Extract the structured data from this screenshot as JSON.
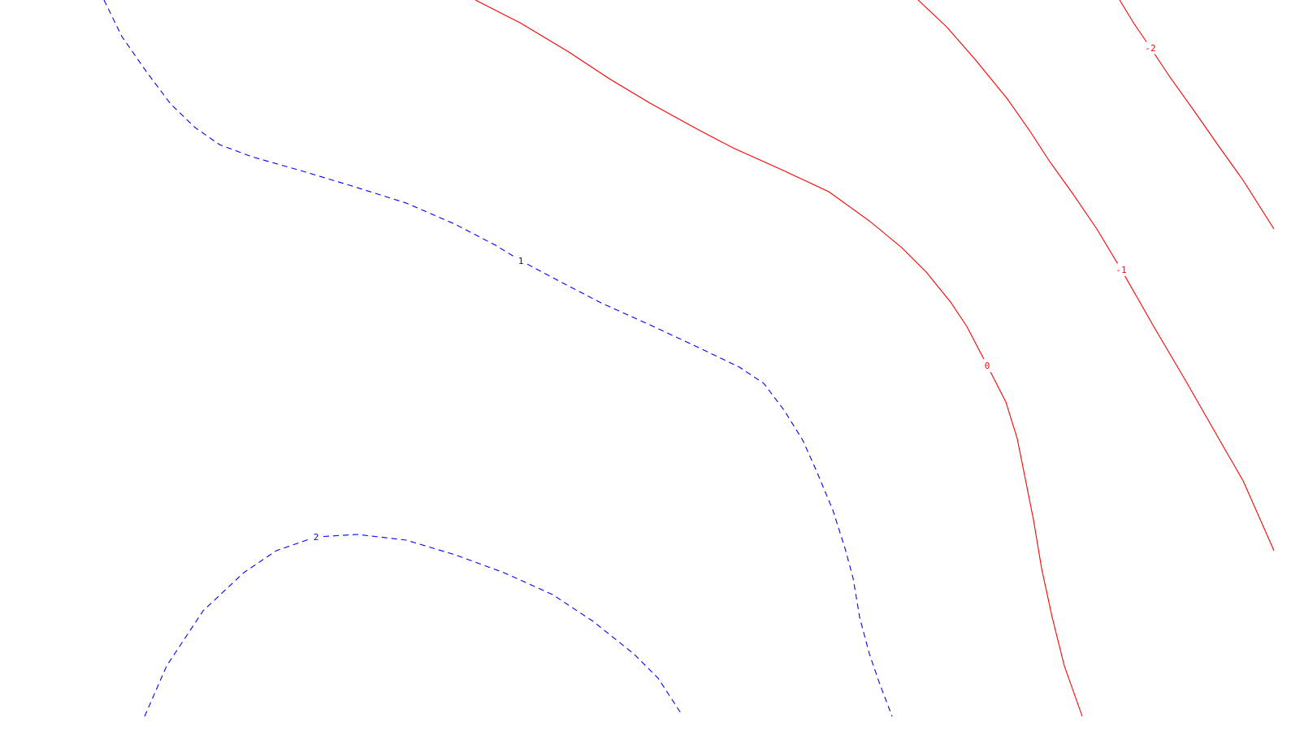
{
  "chart_data": {
    "type": "contour",
    "title": "",
    "xlabel": "",
    "ylabel": "",
    "grid": false,
    "legend": "none",
    "colors": {
      "positive": "#0000ff",
      "zero": "#ff0000",
      "negative": "#ff0000",
      "background": "#ffffff"
    },
    "line_styles": {
      "positive": "dashed",
      "zero": "solid",
      "negative": "solid"
    },
    "levels": [
      {
        "value": 2,
        "label": "2",
        "points": [
          [
            178,
            882
          ],
          [
            205,
            820
          ],
          [
            250,
            752
          ],
          [
            300,
            705
          ],
          [
            340,
            678
          ],
          [
            389,
            661
          ],
          [
            440,
            658
          ],
          [
            500,
            665
          ],
          [
            560,
            683
          ],
          [
            620,
            705
          ],
          [
            680,
            732
          ],
          [
            730,
            765
          ],
          [
            780,
            805
          ],
          [
            810,
            835
          ],
          [
            838,
            878
          ]
        ]
      },
      {
        "value": 1,
        "label": "1",
        "points": [
          [
            128,
            0
          ],
          [
            150,
            45
          ],
          [
            180,
            88
          ],
          [
            210,
            128
          ],
          [
            240,
            157
          ],
          [
            270,
            178
          ],
          [
            310,
            193
          ],
          [
            370,
            210
          ],
          [
            430,
            228
          ],
          [
            500,
            250
          ],
          [
            560,
            276
          ],
          [
            610,
            302
          ],
          [
            641,
            321
          ],
          [
            690,
            347
          ],
          [
            740,
            373
          ],
          [
            800,
            400
          ],
          [
            860,
            428
          ],
          [
            910,
            452
          ],
          [
            940,
            472
          ],
          [
            965,
            505
          ],
          [
            988,
            542
          ],
          [
            1005,
            580
          ],
          [
            1025,
            628
          ],
          [
            1040,
            675
          ],
          [
            1050,
            712
          ],
          [
            1058,
            760
          ],
          [
            1070,
            805
          ],
          [
            1082,
            840
          ],
          [
            1098,
            882
          ]
        ]
      },
      {
        "value": 0,
        "label": "0",
        "points": [
          [
            585,
            0
          ],
          [
            640,
            28
          ],
          [
            700,
            64
          ],
          [
            750,
            97
          ],
          [
            800,
            127
          ],
          [
            860,
            160
          ],
          [
            902,
            182
          ],
          [
            960,
            208
          ],
          [
            1020,
            236
          ],
          [
            1070,
            272
          ],
          [
            1110,
            305
          ],
          [
            1140,
            335
          ],
          [
            1170,
            372
          ],
          [
            1190,
            402
          ],
          [
            1215,
            450
          ],
          [
            1238,
            495
          ],
          [
            1252,
            540
          ],
          [
            1262,
            590
          ],
          [
            1272,
            640
          ],
          [
            1282,
            700
          ],
          [
            1295,
            760
          ],
          [
            1310,
            820
          ],
          [
            1332,
            882
          ]
        ]
      },
      {
        "value": -1,
        "label": "-1",
        "points": [
          [
            1130,
            0
          ],
          [
            1165,
            33
          ],
          [
            1200,
            73
          ],
          [
            1240,
            122
          ],
          [
            1268,
            162
          ],
          [
            1292,
            199
          ],
          [
            1320,
            238
          ],
          [
            1350,
            282
          ],
          [
            1380,
            332
          ],
          [
            1420,
            402
          ],
          [
            1460,
            470
          ],
          [
            1500,
            540
          ],
          [
            1530,
            592
          ],
          [
            1568,
            678
          ]
        ]
      },
      {
        "value": -2,
        "label": "-2",
        "points": [
          [
            1378,
            0
          ],
          [
            1395,
            28
          ],
          [
            1416,
            59
          ],
          [
            1440,
            95
          ],
          [
            1470,
            137
          ],
          [
            1500,
            180
          ],
          [
            1530,
            222
          ],
          [
            1568,
            282
          ]
        ]
      }
    ]
  }
}
